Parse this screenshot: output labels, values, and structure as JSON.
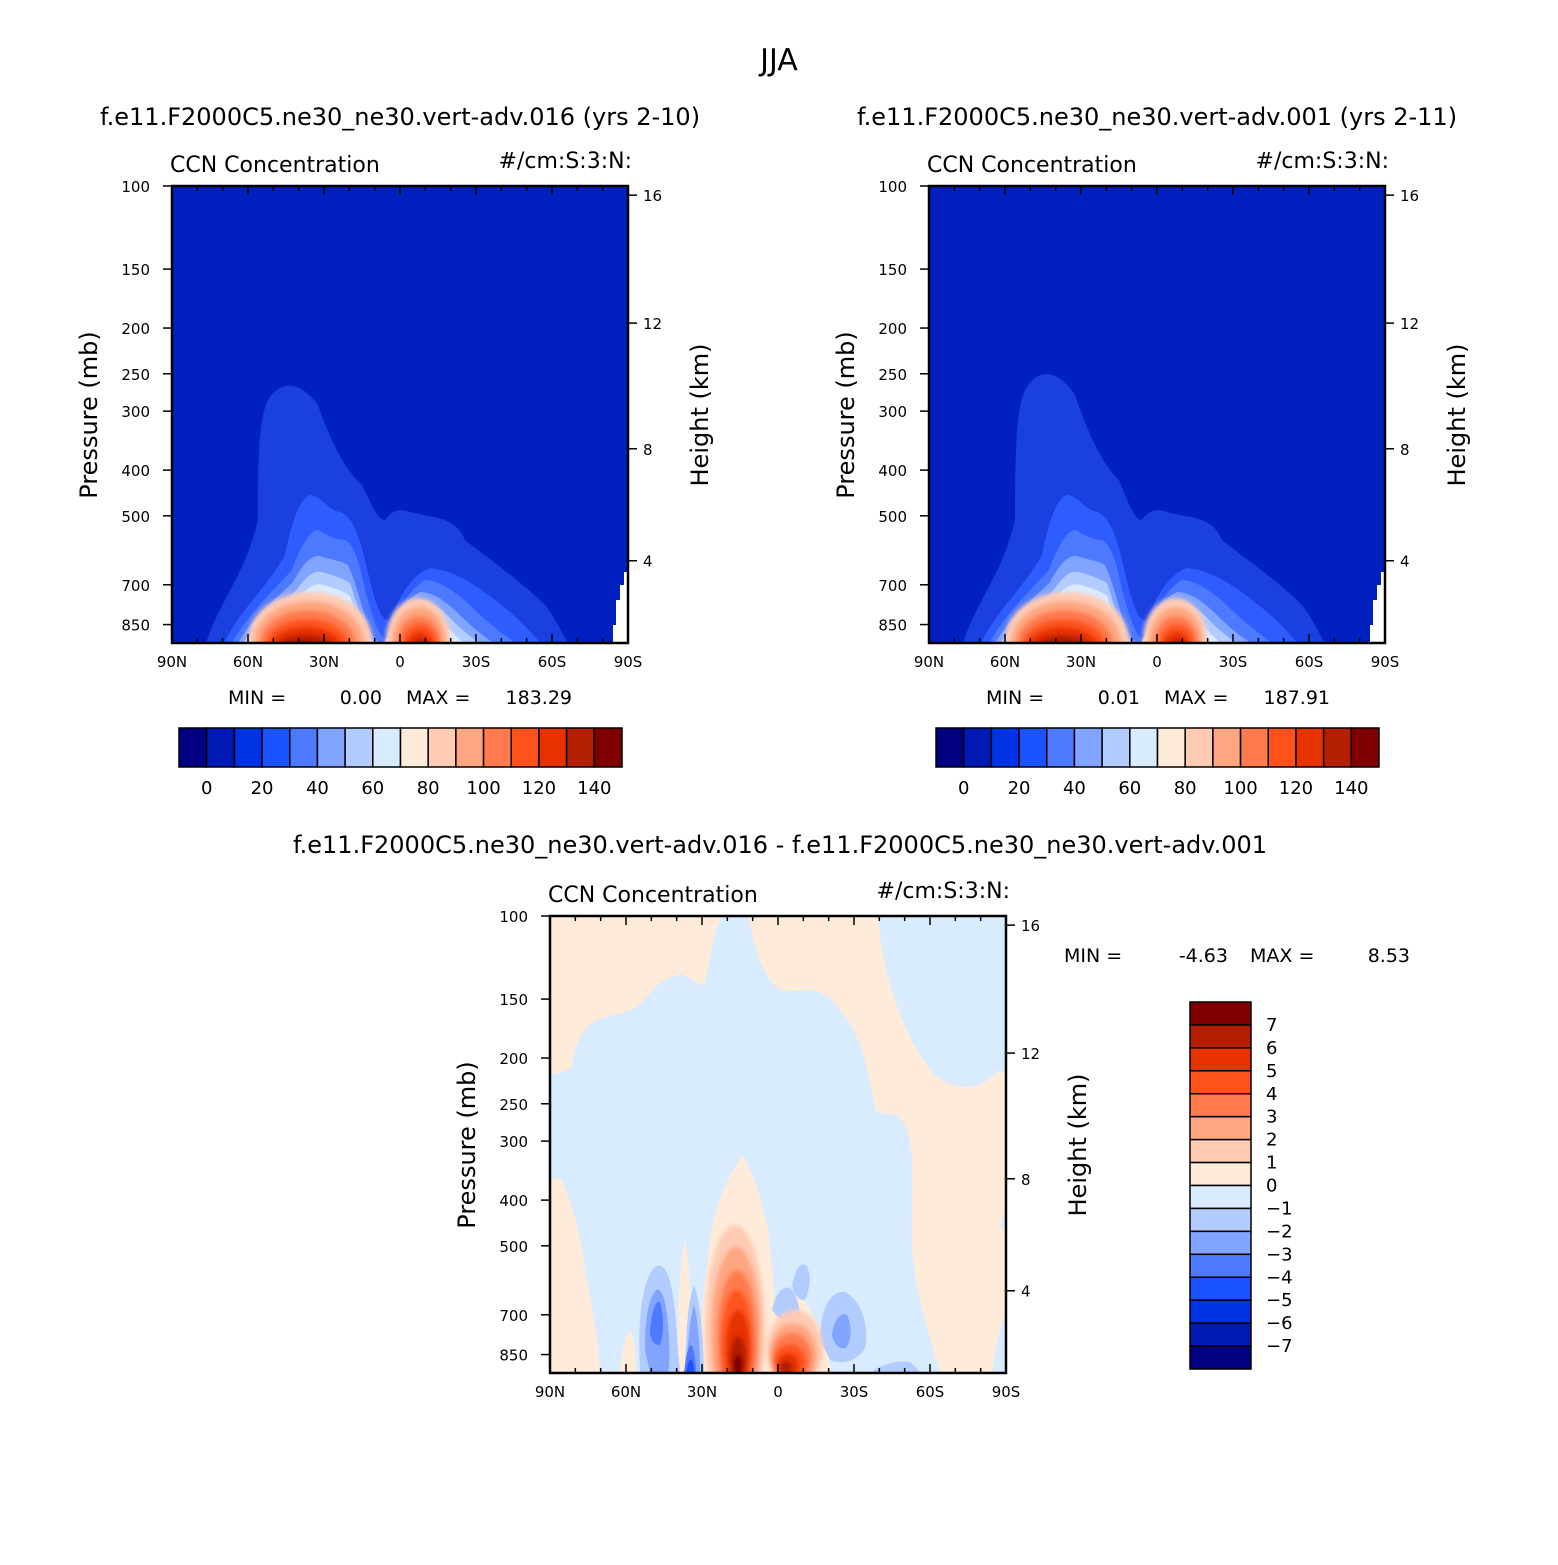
{
  "page_title": "JJA",
  "chart_data": [
    {
      "type": "contour",
      "title": "f.e11.F2000C5.ne30_ne30.vert-adv.016 (yrs 2-10)",
      "subtitle_left": "CCN Concentration",
      "subtitle_right": "#/cm:S:3:N:",
      "xlabel": "",
      "ylabel": "Pressure (mb)",
      "ylabel_right": "Height (km)",
      "x_ticks": [
        "90N",
        "60N",
        "30N",
        "0",
        "30S",
        "60S",
        "90S"
      ],
      "y_ticks": [
        "100",
        "150",
        "200",
        "250",
        "300",
        "400",
        "500",
        "700",
        "850"
      ],
      "y_ticks_right": [
        "16",
        "12",
        "8",
        "4"
      ],
      "min_label": "MIN =",
      "min_value": "0.00",
      "max_label": "MAX =",
      "max_value": "183.29",
      "colorbar_labels": [
        "0",
        "20",
        "40",
        "60",
        "80",
        "100",
        "120",
        "140"
      ]
    },
    {
      "type": "contour",
      "title": "f.e11.F2000C5.ne30_ne30.vert-adv.001 (yrs 2-11)",
      "subtitle_left": "CCN Concentration",
      "subtitle_right": "#/cm:S:3:N:",
      "xlabel": "",
      "ylabel": "Pressure (mb)",
      "ylabel_right": "Height (km)",
      "x_ticks": [
        "90N",
        "60N",
        "30N",
        "0",
        "30S",
        "60S",
        "90S"
      ],
      "y_ticks": [
        "100",
        "150",
        "200",
        "250",
        "300",
        "400",
        "500",
        "700",
        "850"
      ],
      "y_ticks_right": [
        "16",
        "12",
        "8",
        "4"
      ],
      "min_label": "MIN =",
      "min_value": "0.01",
      "max_label": "MAX =",
      "max_value": "187.91",
      "colorbar_labels": [
        "0",
        "20",
        "40",
        "60",
        "80",
        "100",
        "120",
        "140"
      ]
    },
    {
      "type": "contour",
      "title": "f.e11.F2000C5.ne30_ne30.vert-adv.016 - f.e11.F2000C5.ne30_ne30.vert-adv.001",
      "subtitle_left": "CCN Concentration",
      "subtitle_right": "#/cm:S:3:N:",
      "xlabel": "",
      "ylabel": "Pressure (mb)",
      "ylabel_right": "Height (km)",
      "x_ticks": [
        "90N",
        "60N",
        "30N",
        "0",
        "30S",
        "60S",
        "90S"
      ],
      "y_ticks": [
        "100",
        "150",
        "200",
        "250",
        "300",
        "400",
        "500",
        "700",
        "850"
      ],
      "y_ticks_right": [
        "16",
        "12",
        "8",
        "4"
      ],
      "min_label": "MIN =",
      "min_value": "-4.63",
      "max_label": "MAX =",
      "max_value": "8.53",
      "colorbar_labels": [
        "7",
        "6",
        "5",
        "4",
        "3",
        "2",
        "1",
        "0",
        "-1",
        "-2",
        "-3",
        "-4",
        "-5",
        "-6",
        "-7"
      ]
    }
  ],
  "colors": {
    "seq": [
      "#000080",
      "#0019b3",
      "#0033e6",
      "#1a53ff",
      "#4d79ff",
      "#80a4ff",
      "#b3ccff",
      "#d9ebff",
      "#ffebd9",
      "#ffcbb3",
      "#ffa680",
      "#ff7a4d",
      "#ff521a",
      "#e63300",
      "#b31f00",
      "#800000"
    ],
    "background_top": "#0020c0"
  }
}
